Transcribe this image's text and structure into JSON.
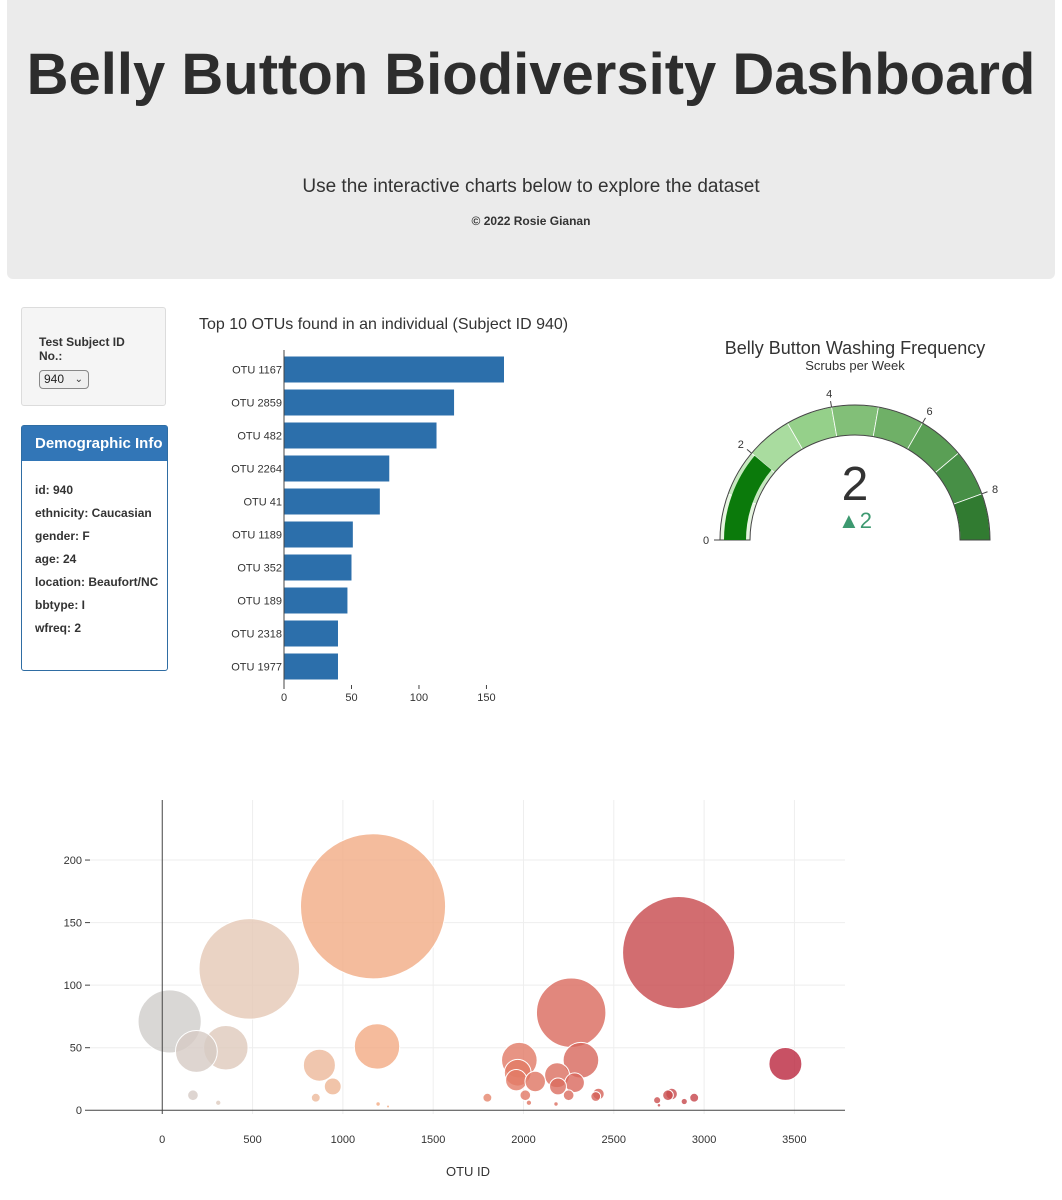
{
  "header": {
    "title": "Belly Button Biodiversity Dashboard",
    "subtitle": "Use the interactive charts below to explore the dataset",
    "copyright": "© 2022 Rosie Gianan"
  },
  "selector": {
    "label": "Test Subject ID No.:",
    "selected": "940"
  },
  "demographics": {
    "heading": "Demographic Info",
    "rows": [
      "id: 940",
      "ethnicity: Caucasian",
      "gender: F",
      "age: 24",
      "location: Beaufort/NC",
      "bbtype: I",
      "wfreq: 2"
    ]
  },
  "colors": {
    "bar": "#2c6fab",
    "gauge_needle": "#0b7a0b",
    "gauge_delta": "#3d9970",
    "jumbotron": "#ebebeb",
    "panel_heading": "#3276b7"
  },
  "chart_data": [
    {
      "type": "bar",
      "orientation": "horizontal",
      "title": "Top 10 OTUs found in an individual (Subject ID 940)",
      "categories": [
        "OTU 1167",
        "OTU 2859",
        "OTU 482",
        "OTU 2264",
        "OTU 41",
        "OTU 1189",
        "OTU 352",
        "OTU 189",
        "OTU 2318",
        "OTU 1977"
      ],
      "values": [
        163,
        126,
        113,
        78,
        71,
        51,
        50,
        47,
        40,
        40
      ],
      "xlim": [
        0,
        163
      ],
      "xticks": [
        0,
        50,
        100,
        150
      ]
    },
    {
      "type": "gauge",
      "title": "Belly Button Washing Frequency",
      "subtitle": "Scrubs per Week",
      "value": 2,
      "delta": "▲2",
      "range": [
        0,
        9
      ],
      "ticks": [
        0,
        2,
        4,
        6,
        8
      ],
      "steps": [
        {
          "range": [
            0,
            1
          ],
          "color": "#e6f5e0"
        },
        {
          "range": [
            1,
            2
          ],
          "color": "#c7e9c0"
        },
        {
          "range": [
            2,
            3
          ],
          "color": "#a9dc9f"
        },
        {
          "range": [
            3,
            4
          ],
          "color": "#95d08a"
        },
        {
          "range": [
            4,
            5
          ],
          "color": "#82bf78"
        },
        {
          "range": [
            5,
            6
          ],
          "color": "#6fb067"
        },
        {
          "range": [
            6,
            7
          ],
          "color": "#5a9f55"
        },
        {
          "range": [
            7,
            8
          ],
          "color": "#478f46"
        },
        {
          "range": [
            8,
            9
          ],
          "color": "#317b31"
        }
      ]
    },
    {
      "type": "scatter",
      "subtype": "bubble",
      "xlabel": "OTU ID",
      "xticks": [
        0,
        500,
        1000,
        1500,
        2000,
        2500,
        3000,
        3500
      ],
      "yticks": [
        0,
        50,
        100,
        150,
        200
      ],
      "xlim": [
        -400,
        3780
      ],
      "ylim": [
        -3,
        248
      ],
      "colorscale": "Earth-like (grey → peach → red)",
      "points": [
        {
          "x": 41,
          "y": 71,
          "size": 71
        },
        {
          "x": 189,
          "y": 47,
          "size": 47
        },
        {
          "x": 352,
          "y": 50,
          "size": 50
        },
        {
          "x": 482,
          "y": 113,
          "size": 113
        },
        {
          "x": 870,
          "y": 36,
          "size": 36
        },
        {
          "x": 944,
          "y": 19,
          "size": 19
        },
        {
          "x": 1167,
          "y": 163,
          "size": 163
        },
        {
          "x": 1189,
          "y": 51,
          "size": 51
        },
        {
          "x": 1977,
          "y": 40,
          "size": 40
        },
        {
          "x": 1968,
          "y": 30,
          "size": 30
        },
        {
          "x": 1960,
          "y": 24,
          "size": 24
        },
        {
          "x": 2065,
          "y": 23,
          "size": 23
        },
        {
          "x": 2186,
          "y": 28,
          "size": 28
        },
        {
          "x": 2191,
          "y": 19,
          "size": 19
        },
        {
          "x": 2264,
          "y": 78,
          "size": 78
        },
        {
          "x": 2318,
          "y": 40,
          "size": 40
        },
        {
          "x": 2283,
          "y": 22,
          "size": 22
        },
        {
          "x": 2859,
          "y": 126,
          "size": 126
        },
        {
          "x": 3450,
          "y": 37,
          "size": 37
        },
        {
          "x": 170,
          "y": 12,
          "size": 12
        },
        {
          "x": 850,
          "y": 10,
          "size": 10
        },
        {
          "x": 1800,
          "y": 10,
          "size": 10
        },
        {
          "x": 2010,
          "y": 12,
          "size": 12
        },
        {
          "x": 2250,
          "y": 12,
          "size": 12
        },
        {
          "x": 2400,
          "y": 11,
          "size": 11
        },
        {
          "x": 2415,
          "y": 13,
          "size": 13
        },
        {
          "x": 2820,
          "y": 13,
          "size": 13
        },
        {
          "x": 2800,
          "y": 12,
          "size": 12
        },
        {
          "x": 2945,
          "y": 10,
          "size": 10
        },
        {
          "x": 2740,
          "y": 8,
          "size": 8
        },
        {
          "x": 2890,
          "y": 7,
          "size": 7
        },
        {
          "x": 2180,
          "y": 5,
          "size": 5
        },
        {
          "x": 2030,
          "y": 6,
          "size": 6
        },
        {
          "x": 310,
          "y": 6,
          "size": 6
        },
        {
          "x": 1195,
          "y": 5,
          "size": 5
        },
        {
          "x": 1250,
          "y": 3,
          "size": 3
        },
        {
          "x": 2750,
          "y": 4,
          "size": 4
        }
      ]
    }
  ]
}
